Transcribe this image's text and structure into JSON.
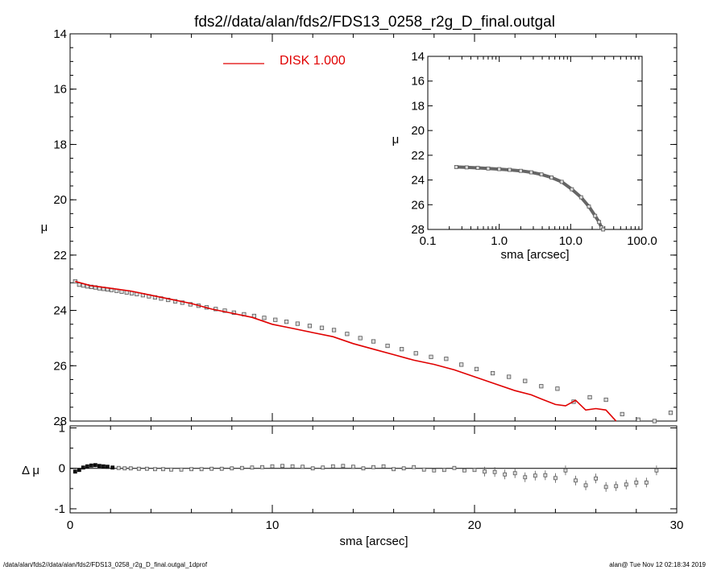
{
  "title": "fds2//data/alan/fds2/FDS13_0258_r2g_D_final.outgal",
  "footer": {
    "left": "/data/alan/fds2//data/alan/fds2/FDS13_0258_r2g_D_final.outgal_1dprof",
    "right": "alan@  Tue Nov 12 02:18:34 2019"
  },
  "colors": {
    "model": "#e00000",
    "data": "#555555",
    "axes": "#000000"
  },
  "chart_data": [
    {
      "id": "main",
      "type": "scatter",
      "title": "fds2//data/alan/fds2/FDS13_0258_r2g_D_final.outgal",
      "xlabel": "",
      "ylabel": "μ",
      "xlim": [
        0,
        30
      ],
      "ylim": [
        28,
        14
      ],
      "y_inverted": true,
      "yticks": [
        "14",
        "16",
        "18",
        "20",
        "22",
        "24",
        "26",
        "28"
      ],
      "legend": {
        "label": "DISK  1.000",
        "position": "top-center"
      },
      "series": [
        {
          "name": "data",
          "marker": "square",
          "x": [
            0.25,
            0.45,
            0.65,
            0.85,
            1.05,
            1.25,
            1.45,
            1.65,
            1.85,
            2.05,
            2.3,
            2.55,
            2.8,
            3.05,
            3.3,
            3.6,
            3.9,
            4.2,
            4.5,
            4.85,
            5.2,
            5.55,
            5.95,
            6.35,
            6.75,
            7.2,
            7.65,
            8.1,
            8.6,
            9.1,
            9.6,
            10.15,
            10.7,
            11.25,
            11.85,
            12.45,
            13.05,
            13.7,
            14.35,
            15.0,
            15.7,
            16.4,
            17.1,
            17.85,
            18.6,
            19.35,
            20.1,
            20.9,
            21.7,
            22.5,
            23.3,
            24.1,
            24.9,
            25.7,
            26.5,
            27.3,
            28.1,
            28.9,
            29.7
          ],
          "y": [
            22.95,
            23.07,
            23.1,
            23.13,
            23.15,
            23.17,
            23.2,
            23.22,
            23.24,
            23.26,
            23.29,
            23.32,
            23.35,
            23.38,
            23.41,
            23.45,
            23.49,
            23.53,
            23.57,
            23.62,
            23.67,
            23.72,
            23.78,
            23.83,
            23.89,
            23.95,
            24.01,
            24.08,
            24.14,
            24.2,
            24.27,
            24.34,
            24.41,
            24.48,
            24.56,
            24.63,
            24.71,
            24.85,
            25.0,
            25.12,
            25.28,
            25.4,
            25.55,
            25.68,
            25.75,
            25.96,
            26.12,
            26.27,
            26.4,
            26.55,
            26.74,
            26.83,
            27.3,
            27.14,
            27.23,
            27.75,
            27.95,
            28.0,
            27.7
          ]
        },
        {
          "name": "DISK  1.000",
          "type": "line",
          "x": [
            0.25,
            1,
            2,
            3,
            4,
            5,
            6,
            7,
            8,
            9,
            10,
            11,
            12,
            13,
            14,
            15,
            16,
            17,
            18,
            19,
            20,
            21,
            22,
            22.8,
            23.3,
            24,
            24.5,
            25,
            25.5,
            26,
            26.5,
            27
          ],
          "y": [
            22.95,
            23.1,
            23.2,
            23.3,
            23.45,
            23.6,
            23.75,
            23.95,
            24.1,
            24.25,
            24.5,
            24.65,
            24.8,
            24.95,
            25.2,
            25.4,
            25.6,
            25.8,
            25.95,
            26.15,
            26.4,
            26.65,
            26.9,
            27.05,
            27.2,
            27.4,
            27.45,
            27.25,
            27.6,
            27.55,
            27.6,
            28.0
          ]
        }
      ]
    },
    {
      "id": "inset",
      "type": "scatter",
      "xlabel": "sma [arcsec]",
      "ylabel": "μ",
      "xscale": "log",
      "xlim": [
        0.1,
        100
      ],
      "ylim": [
        28,
        14
      ],
      "y_inverted": true,
      "xticks": [
        "0.1",
        "1.0",
        "10.0",
        "100.0"
      ],
      "yticks": [
        "14",
        "16",
        "18",
        "20",
        "22",
        "24",
        "26",
        "28"
      ],
      "series": [
        {
          "name": "data",
          "marker": "square",
          "x": [
            0.25,
            0.35,
            0.5,
            0.7,
            1.0,
            1.4,
            2.0,
            2.8,
            3.9,
            5.4,
            7.5,
            10.4,
            14.0,
            18.0,
            22.0,
            25.0,
            27.0,
            28.5
          ],
          "y": [
            22.95,
            22.98,
            23.02,
            23.07,
            23.12,
            23.18,
            23.26,
            23.38,
            23.55,
            23.8,
            24.15,
            24.75,
            25.4,
            26.15,
            26.9,
            27.4,
            27.85,
            28.0
          ]
        }
      ]
    },
    {
      "id": "residual",
      "type": "scatter",
      "xlabel": "sma [arcsec]",
      "ylabel": "Δ μ",
      "xlim": [
        0,
        30
      ],
      "ylim": [
        -1.1,
        1.05
      ],
      "xticks": [
        "0",
        "10",
        "20",
        "30"
      ],
      "yticks": [
        "1",
        "0",
        "-1"
      ],
      "series": [
        {
          "name": "residual",
          "marker": "square",
          "x": [
            0.25,
            0.45,
            0.65,
            0.85,
            1.05,
            1.25,
            1.45,
            1.65,
            1.85,
            2.1,
            2.4,
            2.7,
            3.0,
            3.4,
            3.8,
            4.2,
            4.6,
            5.0,
            5.5,
            6.0,
            6.5,
            7.0,
            7.5,
            8.0,
            8.5,
            9.0,
            9.5,
            10.0,
            10.5,
            11.0,
            11.5,
            12.0,
            12.5,
            13.0,
            13.5,
            14.0,
            14.5,
            15.0,
            15.5,
            16.0,
            16.5,
            17.0,
            17.5,
            18.0,
            18.5,
            19.0,
            19.5,
            20.0,
            20.5,
            21.0,
            21.5,
            22.0,
            22.5,
            23.0,
            23.5,
            24.0,
            24.5,
            25.0,
            25.5,
            26.0,
            26.5,
            27.0,
            27.5,
            28.0,
            28.5,
            29.0
          ],
          "y": [
            -0.08,
            -0.04,
            0.02,
            0.05,
            0.07,
            0.08,
            0.06,
            0.05,
            0.04,
            0.02,
            0.01,
            0.0,
            0.0,
            -0.01,
            -0.01,
            -0.02,
            -0.02,
            -0.03,
            -0.03,
            -0.02,
            -0.02,
            -0.01,
            -0.01,
            0.0,
            0.01,
            0.02,
            0.03,
            0.05,
            0.06,
            0.05,
            0.04,
            0.0,
            0.02,
            0.05,
            0.06,
            0.04,
            0.0,
            0.03,
            0.05,
            -0.02,
            0.0,
            0.03,
            -0.03,
            -0.05,
            -0.04,
            0.01,
            -0.05,
            -0.04,
            -0.08,
            -0.09,
            -0.15,
            -0.12,
            -0.22,
            -0.18,
            -0.17,
            -0.24,
            -0.05,
            -0.3,
            -0.42,
            -0.25,
            -0.46,
            -0.44,
            -0.4,
            -0.35,
            -0.35,
            -0.05
          ]
        }
      ]
    }
  ]
}
